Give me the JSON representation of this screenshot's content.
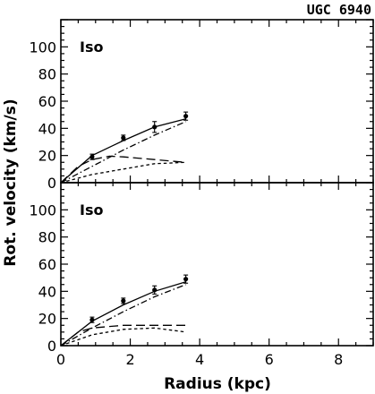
{
  "figure": {
    "title": "UGC 6940"
  },
  "chart_data": [
    {
      "type": "line",
      "panel_label": "Iso",
      "xlabel": "Radius (kpc)",
      "ylabel": "Rot. velocity (km/s)",
      "xlim": [
        0,
        9
      ],
      "ylim": [
        0,
        120
      ],
      "xticks": [
        0,
        2,
        4,
        6,
        8
      ],
      "yticks": [
        0,
        20,
        40,
        60,
        80,
        100
      ],
      "observed": {
        "x": [
          0.9,
          1.8,
          2.7,
          3.6
        ],
        "y": [
          19,
          33,
          41,
          49
        ],
        "yerr": [
          2,
          2,
          4,
          3
        ]
      },
      "series": [
        {
          "style": "solid",
          "x": [
            0,
            0.9,
            1.8,
            2.7,
            3.6
          ],
          "y": [
            0,
            20,
            31,
            41,
            47
          ]
        },
        {
          "style": "dash-dot",
          "x": [
            0,
            0.9,
            1.8,
            2.7,
            3.6
          ],
          "y": [
            0,
            12,
            24,
            35,
            45
          ]
        },
        {
          "style": "long-dash",
          "x": [
            0,
            0.5,
            0.9,
            1.4,
            1.8,
            2.7,
            3.6
          ],
          "y": [
            0,
            12,
            17,
            19.5,
            19,
            17,
            15
          ]
        },
        {
          "style": "short-dash",
          "x": [
            0,
            0.9,
            1.8,
            2.7,
            3.6
          ],
          "y": [
            0,
            6,
            10,
            14,
            15
          ]
        }
      ]
    },
    {
      "type": "line",
      "panel_label": "Iso",
      "xlabel": "Radius (kpc)",
      "ylabel": "Rot. velocity (km/s)",
      "xlim": [
        0,
        9
      ],
      "ylim": [
        0,
        120
      ],
      "xticks": [
        0,
        2,
        4,
        6,
        8
      ],
      "yticks": [
        0,
        20,
        40,
        60,
        80,
        100
      ],
      "observed": {
        "x": [
          0.9,
          1.8,
          2.7,
          3.6
        ],
        "y": [
          19,
          33,
          41,
          49
        ],
        "yerr": [
          2,
          2,
          3,
          3
        ]
      },
      "series": [
        {
          "style": "solid",
          "x": [
            0,
            0.9,
            1.8,
            2.7,
            3.6
          ],
          "y": [
            0,
            18,
            30,
            40,
            47
          ]
        },
        {
          "style": "dash-dot",
          "x": [
            0,
            0.9,
            1.8,
            2.7,
            3.6
          ],
          "y": [
            0,
            13,
            25,
            36,
            45
          ]
        },
        {
          "style": "long-dash",
          "x": [
            0,
            0.5,
            0.9,
            1.8,
            2.7,
            3.6
          ],
          "y": [
            0,
            10,
            13,
            15,
            15,
            15
          ]
        },
        {
          "style": "short-dash",
          "x": [
            0,
            0.9,
            1.8,
            2.7,
            3.6
          ],
          "y": [
            0,
            8,
            12,
            13,
            10
          ]
        }
      ]
    }
  ]
}
